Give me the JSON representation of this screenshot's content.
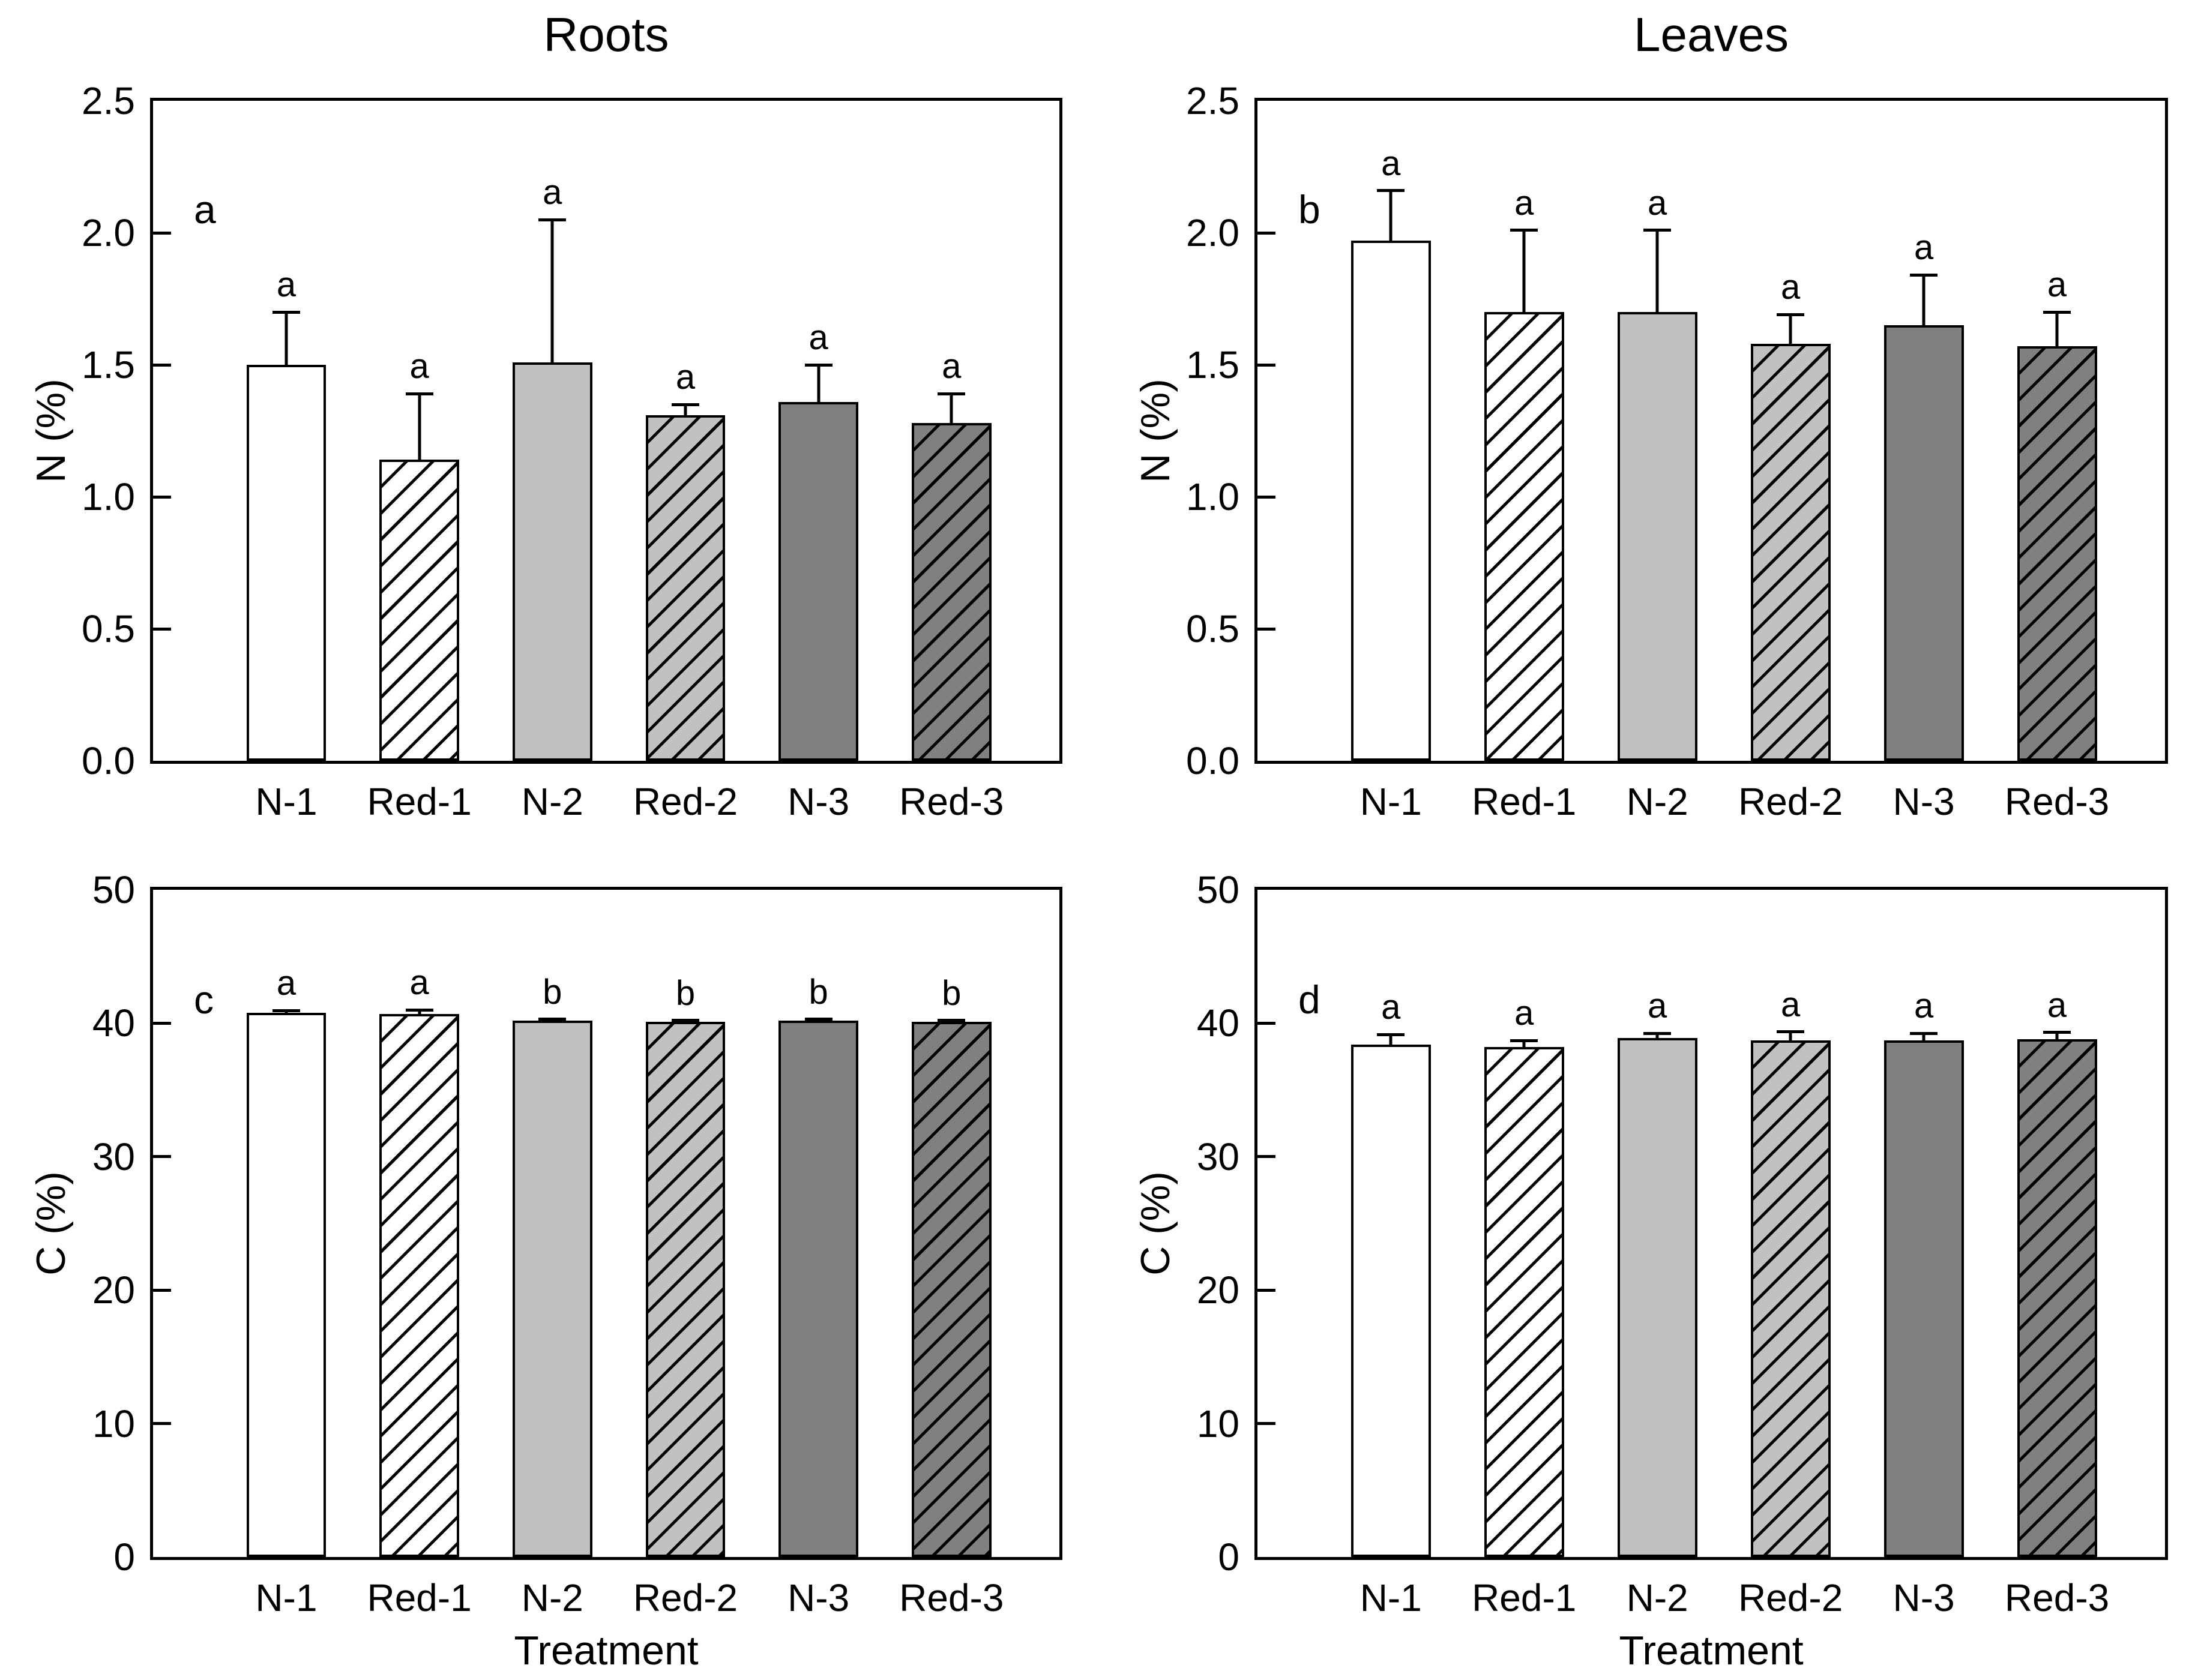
{
  "figure": {
    "background": "#ffffff",
    "line_color": "#000000",
    "column_titles": [
      "Roots",
      "Leaves"
    ]
  },
  "categories": [
    "N-1",
    "Red-1",
    "N-2",
    "Red-2",
    "N-3",
    "Red-3"
  ],
  "bar_styles": [
    {
      "category": "N-1",
      "fill": "#ffffff",
      "hatch": false
    },
    {
      "category": "Red-1",
      "fill": "#ffffff",
      "hatch": true
    },
    {
      "category": "N-2",
      "fill": "#c1c1c1",
      "hatch": false
    },
    {
      "category": "Red-2",
      "fill": "#c1c1c1",
      "hatch": true
    },
    {
      "category": "N-3",
      "fill": "#808080",
      "hatch": false
    },
    {
      "category": "Red-3",
      "fill": "#808080",
      "hatch": true
    }
  ],
  "chart_data": [
    {
      "type": "bar",
      "group": "Roots",
      "panel_label": "a",
      "ylabel": "N (%)",
      "xlabel": "",
      "ylim": [
        0,
        2.5
      ],
      "yticks": [
        "0.0",
        "0.5",
        "1.0",
        "1.5",
        "2.0",
        "2.5"
      ],
      "categories": [
        "N-1",
        "Red-1",
        "N-2",
        "Red-2",
        "N-3",
        "Red-3"
      ],
      "values": [
        1.5,
        1.14,
        1.51,
        1.31,
        1.36,
        1.28
      ],
      "errors_up": [
        0.2,
        0.25,
        0.54,
        0.04,
        0.14,
        0.11
      ],
      "sig_letters": [
        "a",
        "a",
        "a",
        "a",
        "a",
        "a"
      ],
      "grid": false,
      "legend": "none"
    },
    {
      "type": "bar",
      "group": "Leaves",
      "panel_label": "b",
      "ylabel": "N (%)",
      "xlabel": "",
      "ylim": [
        0,
        2.5
      ],
      "yticks": [
        "0.0",
        "0.5",
        "1.0",
        "1.5",
        "2.0",
        "2.5"
      ],
      "categories": [
        "N-1",
        "Red-1",
        "N-2",
        "Red-2",
        "N-3",
        "Red-3"
      ],
      "values": [
        1.97,
        1.7,
        1.7,
        1.58,
        1.65,
        1.57
      ],
      "errors_up": [
        0.19,
        0.31,
        0.31,
        0.11,
        0.19,
        0.13
      ],
      "sig_letters": [
        "a",
        "a",
        "a",
        "a",
        "a",
        "a"
      ],
      "grid": false,
      "legend": "none"
    },
    {
      "type": "bar",
      "group": "Roots",
      "panel_label": "c",
      "ylabel": "C (%)",
      "xlabel": "Treatment",
      "ylim": [
        0,
        50
      ],
      "yticks": [
        "0",
        "10",
        "20",
        "30",
        "40",
        "50"
      ],
      "categories": [
        "N-1",
        "Red-1",
        "N-2",
        "Red-2",
        "N-3",
        "Red-3"
      ],
      "values": [
        40.8,
        40.7,
        40.2,
        40.1,
        40.2,
        40.1
      ],
      "errors_up": [
        0.15,
        0.3,
        0.1,
        0.1,
        0.1,
        0.1
      ],
      "sig_letters": [
        "a",
        "a",
        "b",
        "b",
        "b",
        "b"
      ],
      "grid": false,
      "legend": "none"
    },
    {
      "type": "bar",
      "group": "Leaves",
      "panel_label": "d",
      "ylabel": "C (%)",
      "xlabel": "Treatment",
      "ylim": [
        0,
        50
      ],
      "yticks": [
        "0",
        "10",
        "20",
        "30",
        "40",
        "50"
      ],
      "categories": [
        "N-1",
        "Red-1",
        "N-2",
        "Red-2",
        "N-3",
        "Red-3"
      ],
      "values": [
        38.4,
        38.2,
        38.9,
        38.7,
        38.7,
        38.8
      ],
      "errors_up": [
        0.75,
        0.5,
        0.35,
        0.65,
        0.55,
        0.5
      ],
      "sig_letters": [
        "a",
        "a",
        "a",
        "a",
        "a",
        "a"
      ],
      "grid": false,
      "legend": "none"
    }
  ]
}
